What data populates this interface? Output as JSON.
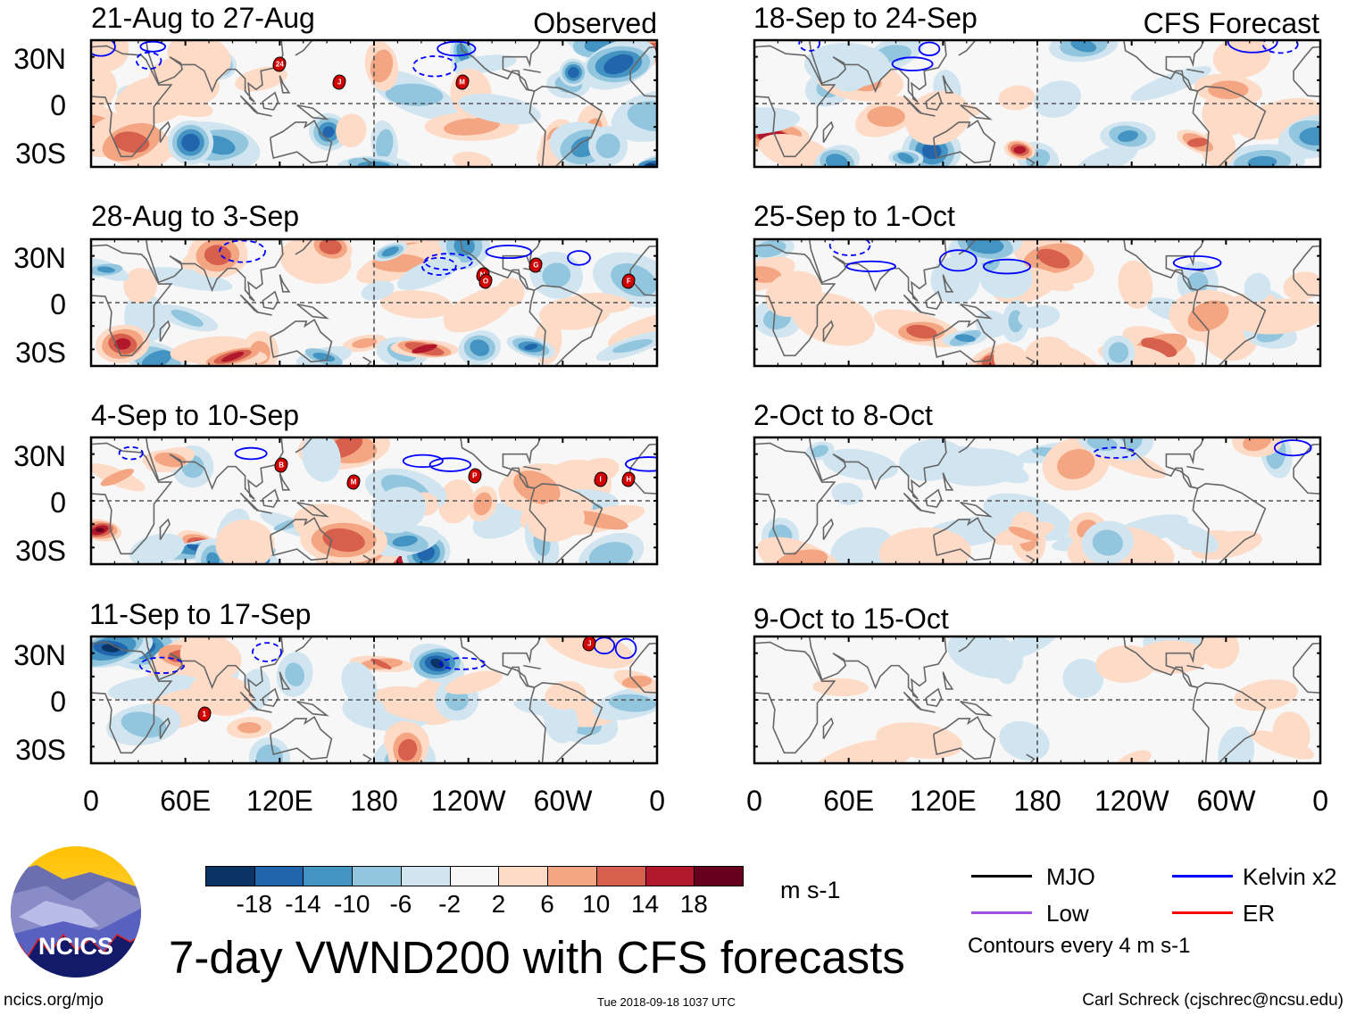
{
  "panels": [
    {
      "title": "21-Aug to 27-Aug",
      "label": "Observed",
      "kind": "observed",
      "storms": [
        {
          "id": "24",
          "lon": 120,
          "lat": 25
        },
        {
          "id": "J",
          "lon": 158,
          "lat": 14
        },
        {
          "id": "M",
          "lon": 236,
          "lat": 14
        }
      ]
    },
    {
      "title": "28-Aug to 3-Sep",
      "label": "",
      "kind": "observed",
      "storms": [
        {
          "id": "N",
          "lon": 249,
          "lat": 18
        },
        {
          "id": "O",
          "lon": 251,
          "lat": 14
        },
        {
          "id": "G",
          "lon": 283,
          "lat": 24
        },
        {
          "id": "F",
          "lon": 342,
          "lat": 14
        }
      ]
    },
    {
      "title": "4-Sep to 10-Sep",
      "label": "",
      "kind": "observed",
      "storms": [
        {
          "id": "B",
          "lon": 121,
          "lat": 23
        },
        {
          "id": "M",
          "lon": 167,
          "lat": 12
        },
        {
          "id": "P",
          "lon": 244,
          "lat": 16
        },
        {
          "id": "I",
          "lon": 324,
          "lat": 14
        },
        {
          "id": "H",
          "lon": 342,
          "lat": 14
        }
      ]
    },
    {
      "title": "11-Sep to 17-Sep",
      "label": "",
      "kind": "observed",
      "storms": [
        {
          "id": "1",
          "lon": 72,
          "lat": -9
        },
        {
          "id": "J",
          "lon": 317,
          "lat": 36
        }
      ]
    },
    {
      "title": "18-Sep to 24-Sep",
      "label": "CFS Forecast",
      "kind": "forecast",
      "storms": []
    },
    {
      "title": "25-Sep to 1-Oct",
      "label": "",
      "kind": "forecast",
      "storms": []
    },
    {
      "title": "2-Oct to 8-Oct",
      "label": "",
      "kind": "forecast",
      "storms": []
    },
    {
      "title": "9-Oct to 15-Oct",
      "label": "",
      "kind": "forecast",
      "storms": []
    }
  ],
  "yaxis": {
    "labels": [
      "30N",
      "0",
      "30S"
    ]
  },
  "xaxis": {
    "labels": [
      "0",
      "60E",
      "120E",
      "180",
      "120W",
      "60W",
      "0"
    ]
  },
  "colorbar": {
    "colors": [
      "#0b3466",
      "#2166ac",
      "#4393c3",
      "#92c5de",
      "#d1e5f0",
      "#f7f7f7",
      "#fddbc7",
      "#f4a582",
      "#d6604d",
      "#b2182b",
      "#67001f"
    ],
    "labels": [
      "-18",
      "-14",
      "-10",
      "-6",
      "-2",
      "2",
      "6",
      "10",
      "14",
      "18"
    ],
    "units": "m s-1"
  },
  "legend": {
    "items": [
      {
        "label": "MJO",
        "color": "#000000"
      },
      {
        "label": "Kelvin x2",
        "color": "#0000ff"
      },
      {
        "label": "Low",
        "color": "#a050e0"
      },
      {
        "label": "ER",
        "color": "#ff0000"
      }
    ],
    "note": "Contours every 4 m s-1"
  },
  "title": "7-day VWND200 with CFS forecasts",
  "logo": {
    "text": "NCICS"
  },
  "footer": {
    "left": "ncics.org/mjo",
    "center": "Tue 2018-09-18 1037 UTC",
    "right": "Carl Schreck (cjschrec@ncsu.edu)"
  }
}
